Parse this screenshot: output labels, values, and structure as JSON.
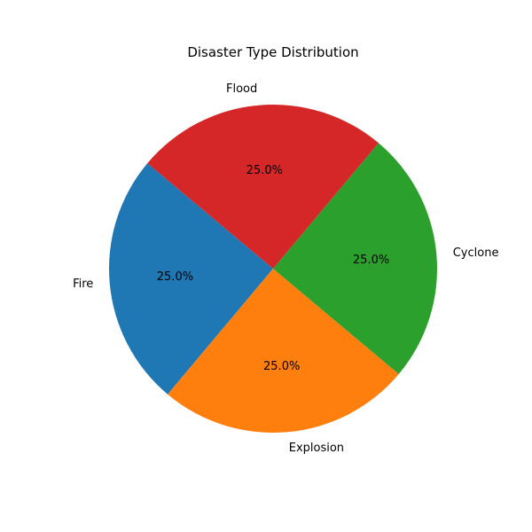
{
  "chart_data": {
    "type": "pie",
    "title": "Disaster Type Distribution",
    "start_angle_deg": 140,
    "direction": "counterclockwise",
    "slices": [
      {
        "label": "Fire",
        "value": 25.0,
        "pct_label": "25.0%",
        "color": "#1f77b4"
      },
      {
        "label": "Explosion",
        "value": 25.0,
        "pct_label": "25.0%",
        "color": "#ff7f0e"
      },
      {
        "label": "Cyclone",
        "value": 25.0,
        "pct_label": "25.0%",
        "color": "#2ca02c"
      },
      {
        "label": "Flood",
        "value": 25.0,
        "pct_label": "25.0%",
        "color": "#d62728"
      }
    ]
  }
}
